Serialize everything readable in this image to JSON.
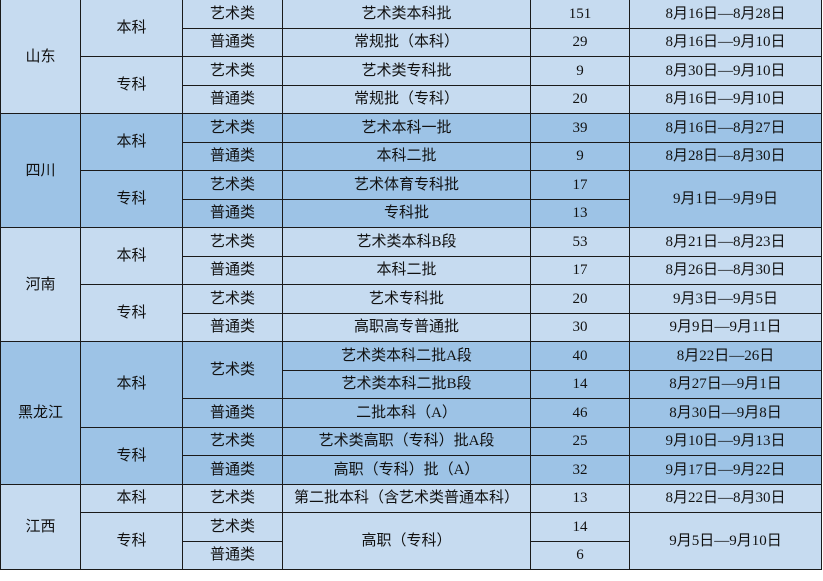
{
  "colors": {
    "light": "#c6dbf0",
    "dark": "#9dc3e6"
  },
  "rows": [
    {
      "province": "山东",
      "level": "本科",
      "type": "艺术类",
      "batch": "艺术类本科批",
      "count": "151",
      "dates": "8月16日—8月28日",
      "shade": "light"
    },
    {
      "province": null,
      "level": null,
      "type": "普通类",
      "batch": "常规批（本科）",
      "count": "29",
      "dates": "8月16日—9月10日",
      "shade": "light"
    },
    {
      "province": null,
      "level": "专科",
      "type": "艺术类",
      "batch": "艺术类专科批",
      "count": "9",
      "dates": "8月30日—9月10日",
      "shade": "light"
    },
    {
      "province": null,
      "level": null,
      "type": "普通类",
      "batch": "常规批（专科）",
      "count": "20",
      "dates": "8月16日—9月10日",
      "shade": "light"
    },
    {
      "province": "四川",
      "level": "本科",
      "type": "艺术类",
      "batch": "艺术本科一批",
      "count": "39",
      "dates": "8月16日—8月27日",
      "shade": "dark"
    },
    {
      "province": null,
      "level": null,
      "type": "普通类",
      "batch": "本科二批",
      "count": "9",
      "dates": "8月28日—8月30日",
      "shade": "dark"
    },
    {
      "province": null,
      "level": "专科",
      "type": "艺术类",
      "batch": "艺术体育专科批",
      "count": "17",
      "dates": "9月1日—9月9日",
      "shade": "dark"
    },
    {
      "province": null,
      "level": null,
      "type": "普通类",
      "batch": "专科批",
      "count": "13",
      "dates": null,
      "shade": "dark"
    },
    {
      "province": "河南",
      "level": "本科",
      "type": "艺术类",
      "batch": "艺术类本科B段",
      "count": "53",
      "dates": "8月21日—8月23日",
      "shade": "light"
    },
    {
      "province": null,
      "level": null,
      "type": "普通类",
      "batch": "本科二批",
      "count": "17",
      "dates": "8月26日—8月30日",
      "shade": "light"
    },
    {
      "province": null,
      "level": "专科",
      "type": "艺术类",
      "batch": "艺术专科批",
      "count": "20",
      "dates": "9月3日—9月5日",
      "shade": "light"
    },
    {
      "province": null,
      "level": null,
      "type": "普通类",
      "batch": "高职高专普通批",
      "count": "30",
      "dates": "9月9日—9月11日",
      "shade": "light"
    },
    {
      "province": "黑龙江",
      "level": "本科",
      "type": "艺术类",
      "batch": "艺术类本科二批A段",
      "count": "40",
      "dates": "8月22日—26日",
      "shade": "dark"
    },
    {
      "province": null,
      "level": null,
      "type": null,
      "batch": "艺术类本科二批B段",
      "count": "14",
      "dates": "8月27日—9月1日",
      "shade": "dark"
    },
    {
      "province": null,
      "level": null,
      "type": "普通类",
      "batch": "二批本科（A）",
      "count": "46",
      "dates": "8月30日—9月8日",
      "shade": "dark"
    },
    {
      "province": null,
      "level": "专科",
      "type": "艺术类",
      "batch": "艺术类高职（专科）批A段",
      "count": "25",
      "dates": "9月10日—9月13日",
      "shade": "dark"
    },
    {
      "province": null,
      "level": null,
      "type": "普通类",
      "batch": "高职（专科）批（A）",
      "count": "32",
      "dates": "9月17日—9月22日",
      "shade": "dark"
    },
    {
      "province": "江西",
      "level": "本科",
      "type": "艺术类",
      "batch": "第二批本科（含艺术类普通本科）",
      "count": "13",
      "dates": "8月22日—8月30日",
      "shade": "light"
    },
    {
      "province": null,
      "level": "专科",
      "type": "艺术类",
      "batch": "高职（专科）",
      "count": "14",
      "dates": "9月5日—9月10日",
      "shade": "light"
    },
    {
      "province": null,
      "level": null,
      "type": "普通类",
      "batch": null,
      "count": "6",
      "dates": null,
      "shade": "light"
    }
  ]
}
